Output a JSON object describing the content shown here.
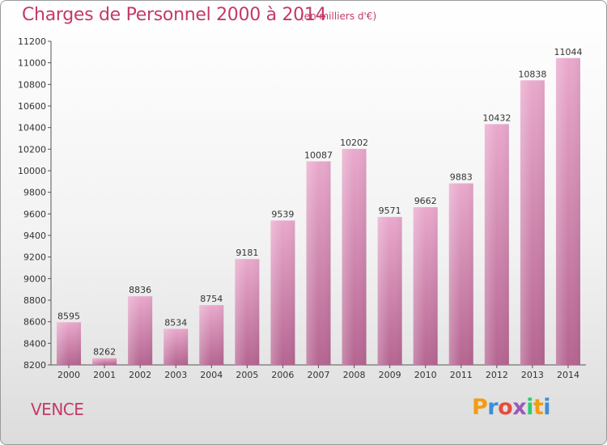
{
  "title": "Charges de Personnel 2000 à 2014",
  "subtitle": "(en milliers d'€)",
  "city": "VENCE",
  "logo": {
    "text": "Proxiti",
    "letters": [
      "P",
      "r",
      "o",
      "x",
      "i",
      "t",
      "i"
    ],
    "colors": [
      "#f39c12",
      "#3b8fd6",
      "#e84c3d",
      "#9b59b6",
      "#2ecc71",
      "#f39c12",
      "#3b8fd6"
    ]
  },
  "colors": {
    "title": "#c33a68",
    "bar_top": "#e9a9cc",
    "bar_bottom": "#b56591"
  },
  "chart_data": {
    "type": "bar",
    "title": "Charges de Personnel 2000 à 2014",
    "subtitle": "(en milliers d'€)",
    "categories": [
      "2000",
      "2001",
      "2002",
      "2003",
      "2004",
      "2005",
      "2006",
      "2007",
      "2008",
      "2009",
      "2010",
      "2011",
      "2012",
      "2013",
      "2014"
    ],
    "values": [
      8595,
      8262,
      8836,
      8534,
      8754,
      9181,
      9539,
      10087,
      10202,
      9571,
      9662,
      9883,
      10432,
      10838,
      11044
    ],
    "ylim": [
      8200,
      11200
    ],
    "yticks": [
      8200,
      8400,
      8600,
      8800,
      9000,
      9200,
      9400,
      9600,
      9800,
      10000,
      10200,
      10400,
      10600,
      10800,
      11000,
      11200
    ],
    "grid": false,
    "data_labels": true
  }
}
